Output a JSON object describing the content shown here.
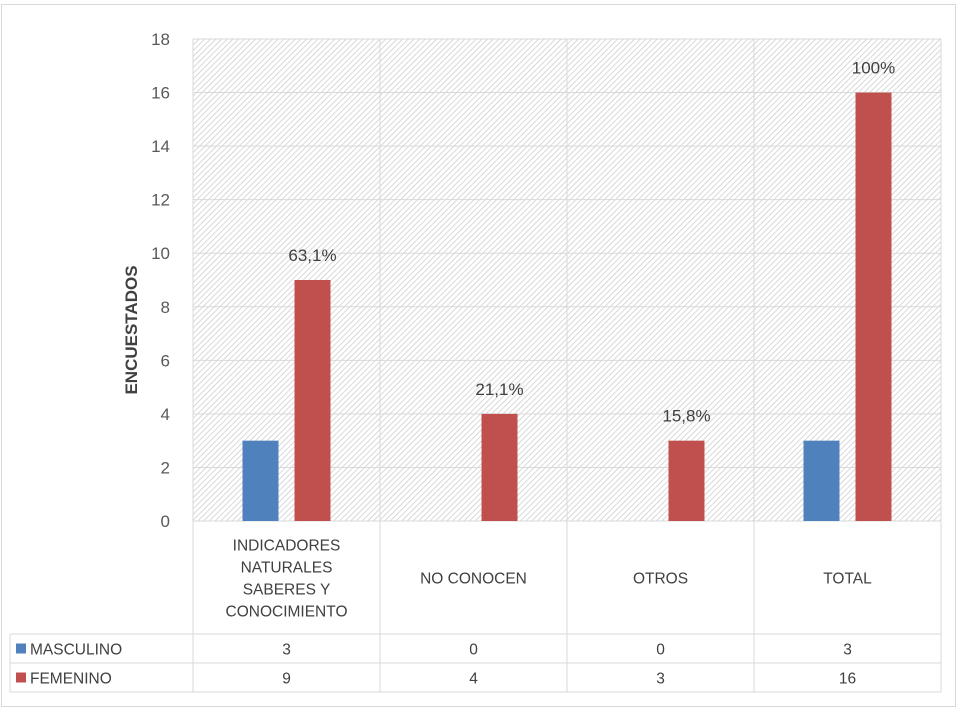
{
  "chart_data": {
    "type": "bar",
    "ylabel": "ENCUESTADOS",
    "ylim": [
      0,
      18
    ],
    "yticks": [
      0,
      2,
      4,
      6,
      8,
      10,
      12,
      14,
      16,
      18
    ],
    "grid": true,
    "legend": "data-table-below",
    "categories": [
      [
        "INDICADORES",
        "NATURALES",
        "SABERES Y",
        "CONOCIMIENTO"
      ],
      [
        "NO CONOCEN"
      ],
      [
        "OTROS"
      ],
      [
        "TOTAL"
      ]
    ],
    "series": [
      {
        "name": "MASCULINO",
        "color": "#4f81bd",
        "values": [
          3,
          0,
          0,
          3
        ]
      },
      {
        "name": "FEMENINO",
        "color": "#c0504d",
        "values": [
          9,
          4,
          3,
          16
        ]
      }
    ],
    "annotations": [
      "63,1%",
      "21,1%",
      "15,8%",
      "100%"
    ]
  }
}
